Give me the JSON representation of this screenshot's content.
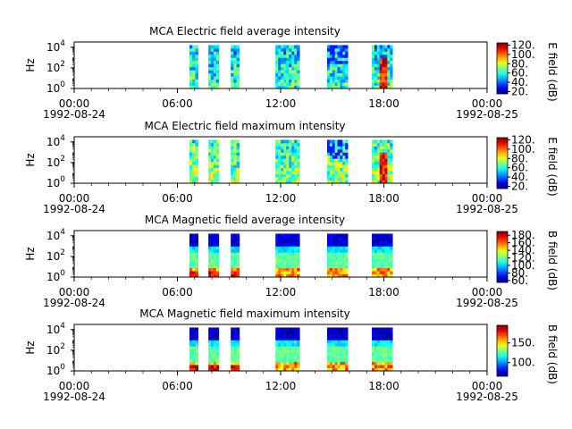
{
  "chart_data": [
    {
      "type": "heatmap",
      "title": "MCA  Electric field average intensity",
      "ylabel": "Hz",
      "colorbar_label": "E field (dB)",
      "colorbar_ticks": [
        "20.",
        "40.",
        "60.",
        "80.",
        "100.",
        "120."
      ],
      "colorbar_range": [
        15,
        125
      ],
      "y_scale": "log",
      "y_tick_labels": [
        {
          "base": "10",
          "exp": "0"
        },
        {
          "base": "10",
          "exp": "2"
        },
        {
          "base": "10",
          "exp": "4"
        }
      ],
      "x_tick_labels": [
        "00:00",
        "06:00",
        "12:00",
        "18:00",
        "00:00"
      ],
      "x_date_labels": [
        "1992-08-24",
        "1992-08-25"
      ],
      "x_range_hours": [
        0,
        24
      ],
      "data_segments_hours": [
        [
          6.7,
          7.2
        ],
        [
          7.8,
          8.4
        ],
        [
          9.1,
          9.6
        ],
        [
          11.7,
          13.1
        ],
        [
          14.7,
          15.9
        ],
        [
          17.3,
          18.5
        ]
      ],
      "mean_level": 62
    },
    {
      "type": "heatmap",
      "title": "MCA  Electric field maximum intensity",
      "ylabel": "Hz",
      "colorbar_label": "E field (dB)",
      "colorbar_ticks": [
        "20.",
        "40.",
        "60.",
        "80.",
        "100.",
        "120."
      ],
      "colorbar_range": [
        15,
        125
      ],
      "y_scale": "log",
      "y_tick_labels": [
        {
          "base": "10",
          "exp": "0"
        },
        {
          "base": "10",
          "exp": "2"
        },
        {
          "base": "10",
          "exp": "4"
        }
      ],
      "x_tick_labels": [
        "00:00",
        "06:00",
        "12:00",
        "18:00",
        "00:00"
      ],
      "x_date_labels": [
        "1992-08-24",
        "1992-08-25"
      ],
      "x_range_hours": [
        0,
        24
      ],
      "data_segments_hours": [
        [
          6.7,
          7.2
        ],
        [
          7.8,
          8.4
        ],
        [
          9.1,
          9.6
        ],
        [
          11.7,
          13.1
        ],
        [
          14.7,
          15.9
        ],
        [
          17.3,
          18.5
        ]
      ],
      "mean_level": 72
    },
    {
      "type": "heatmap",
      "title": "MCA  Magnetic field average intensity",
      "ylabel": "Hz",
      "colorbar_label": "B field (dB)",
      "colorbar_ticks": [
        "60.",
        "80.",
        "100.",
        "120.",
        "140.",
        "160.",
        "180."
      ],
      "colorbar_range": [
        55,
        190
      ],
      "y_scale": "log",
      "y_tick_labels": [
        {
          "base": "10",
          "exp": "0"
        },
        {
          "base": "10",
          "exp": "2"
        },
        {
          "base": "10",
          "exp": "4"
        }
      ],
      "x_tick_labels": [
        "00:00",
        "06:00",
        "12:00",
        "18:00",
        "00:00"
      ],
      "x_date_labels": [
        "1992-08-24",
        "1992-08-25"
      ],
      "x_range_hours": [
        0,
        24
      ],
      "data_segments_hours": [
        [
          6.7,
          7.2
        ],
        [
          7.8,
          8.4
        ],
        [
          9.1,
          9.6
        ],
        [
          11.7,
          13.1
        ],
        [
          14.7,
          15.9
        ],
        [
          17.3,
          18.5
        ]
      ],
      "mean_level": 115
    },
    {
      "type": "heatmap",
      "title": "MCA  Magnetic field maximum intensity",
      "ylabel": "Hz",
      "colorbar_label": "B field (dB)",
      "colorbar_ticks": [
        "100.",
        "150."
      ],
      "colorbar_range": [
        65,
        195
      ],
      "y_scale": "log",
      "y_tick_labels": [
        {
          "base": "10",
          "exp": "0"
        },
        {
          "base": "10",
          "exp": "2"
        },
        {
          "base": "10",
          "exp": "4"
        }
      ],
      "x_tick_labels": [
        "00:00",
        "06:00",
        "12:00",
        "18:00",
        "00:00"
      ],
      "x_date_labels": [
        "1992-08-24",
        "1992-08-25"
      ],
      "x_range_hours": [
        0,
        24
      ],
      "data_segments_hours": [
        [
          6.7,
          7.2
        ],
        [
          7.8,
          8.4
        ],
        [
          9.1,
          9.6
        ],
        [
          11.7,
          13.1
        ],
        [
          14.7,
          15.9
        ],
        [
          17.3,
          18.5
        ]
      ],
      "mean_level": 125
    }
  ]
}
